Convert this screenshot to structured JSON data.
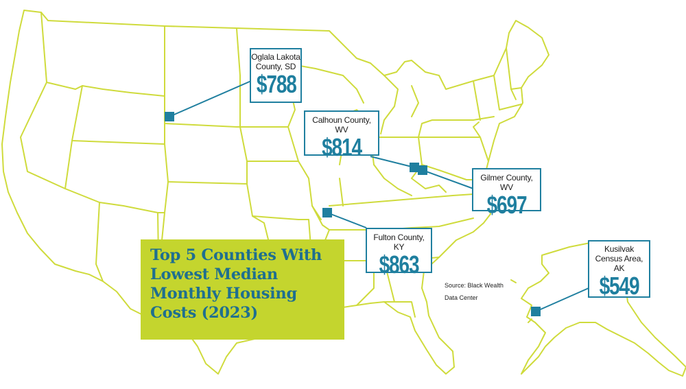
{
  "title": "Top 5 Counties With Lowest Median Monthly Housing Costs (2023)",
  "source": "Source: Black Wealth Data Center",
  "colors": {
    "outline": "#cfdb3c",
    "accent": "#1f7f9f",
    "title_bg": "#c4d52e",
    "title_text": "#1f6f8f"
  },
  "counties": [
    {
      "name": "Oglala Lakota County, SD",
      "value": "$788"
    },
    {
      "name": "Calhoun County, WV",
      "value": "$814"
    },
    {
      "name": "Gilmer County, WV",
      "value": "$697"
    },
    {
      "name": "Fulton County, KY",
      "value": "$863"
    },
    {
      "name": "Kusilvak Census Area, AK",
      "value": "$549"
    }
  ]
}
